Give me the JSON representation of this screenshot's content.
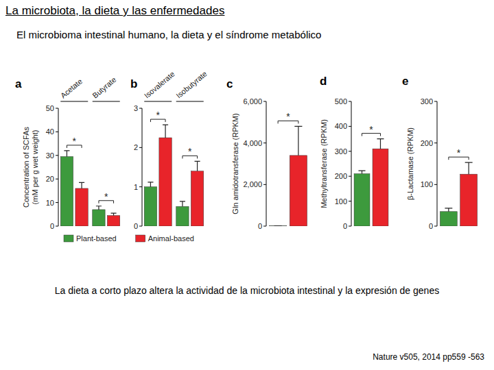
{
  "page": {
    "title": "La microbiota, la dieta y las enfermedades",
    "subtitle": "El microbioma intestinal humano, la dieta y el síndrome metabólico",
    "caption": "La dieta a corto plazo altera la actividad de la microbiota intestinal y la expresión de genes",
    "citation": "Nature v505, 2014 pp559 -563"
  },
  "chart_data": [
    {
      "type": "bar",
      "title": "a",
      "y_label": "Concentration of SCFAs (mM per g wet weight)",
      "categories": [
        "Acetate",
        "Butyrate"
      ],
      "series": [
        {
          "name": "Plant-based",
          "color": "#3d9a3d",
          "values": [
            29.5,
            7
          ],
          "error": [
            2.5,
            1.5
          ]
        },
        {
          "name": "Animal-based",
          "color": "#e8242a",
          "values": [
            16,
            4.5
          ],
          "error": [
            2.5,
            1
          ]
        }
      ],
      "ylim": [
        0,
        50
      ],
      "yticks": [
        0,
        10,
        20,
        30,
        40,
        50
      ],
      "legend": "bottom",
      "annotations": [
        "*",
        "*"
      ]
    },
    {
      "type": "bar",
      "title": "b",
      "categories": [
        "Isovalerate",
        "Isobutyrate"
      ],
      "series": [
        {
          "color": "#3d9a3d",
          "values": [
            1.0,
            0.5
          ],
          "error": [
            0.12,
            0.13
          ]
        },
        {
          "color": "#e8242a",
          "values": [
            2.25,
            1.4
          ],
          "error": [
            0.33,
            0.25
          ]
        }
      ],
      "ylim": [
        0,
        3
      ],
      "yticks": [
        0,
        1,
        2,
        3
      ],
      "annotations": [
        "*",
        "*"
      ]
    },
    {
      "type": "bar",
      "title": "c",
      "y_label": "Gln amidotransferase (RPKM)",
      "categories": [
        null
      ],
      "series": [
        {
          "color": "#3d9a3d",
          "values": [
            10
          ],
          "error": [
            5
          ]
        },
        {
          "color": "#e8242a",
          "values": [
            3400
          ],
          "error": [
            1400
          ]
        }
      ],
      "ylim": [
        0,
        6000
      ],
      "yticks": [
        0,
        {
          "value": 2000,
          "label": "2,000"
        },
        {
          "value": 4000,
          "label": "4,000"
        },
        {
          "value": 6000,
          "label": "6,000"
        }
      ],
      "annotations": [
        "*"
      ]
    },
    {
      "type": "bar",
      "title": "d",
      "y_label": "Methyltransferase (RPKM)",
      "categories": [
        null
      ],
      "series": [
        {
          "color": "#3d9a3d",
          "values": [
            210
          ],
          "error": [
            12
          ]
        },
        {
          "color": "#e8242a",
          "values": [
            310
          ],
          "error": [
            40
          ]
        }
      ],
      "ylim": [
        0,
        500
      ],
      "yticks": [
        0,
        100,
        200,
        300,
        400,
        500
      ],
      "annotations": [
        "*"
      ]
    },
    {
      "type": "bar",
      "title": "e",
      "y_label": "β-Lactamase (RPKM)",
      "categories": [
        null
      ],
      "series": [
        {
          "color": "#3d9a3d",
          "values": [
            35
          ],
          "error": [
            8
          ]
        },
        {
          "color": "#e8242a",
          "values": [
            125
          ],
          "error": [
            28
          ]
        }
      ],
      "ylim": [
        0,
        300
      ],
      "yticks": [
        0,
        100,
        200,
        300
      ],
      "annotations": [
        "*"
      ]
    }
  ]
}
